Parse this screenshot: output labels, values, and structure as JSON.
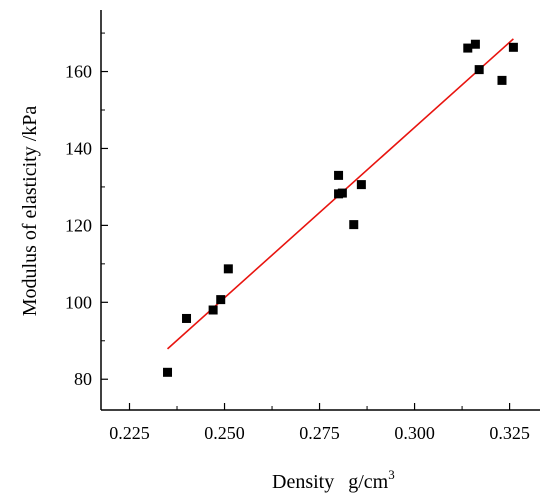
{
  "chart_data": {
    "type": "scatter",
    "title": "",
    "xlabel": "Density",
    "xlabel_unit": "g/cm",
    "xlabel_unit_exponent": "3",
    "ylabel": "Modulus of elasticity /kPa",
    "xlim": [
      0.2175,
      0.333
    ],
    "ylim": [
      72,
      176
    ],
    "x_ticks": [
      0.225,
      0.25,
      0.275,
      0.3,
      0.325
    ],
    "x_tick_labels": [
      "0.225",
      "0.250",
      "0.275",
      "0.300",
      "0.325"
    ],
    "y_ticks": [
      80,
      100,
      120,
      140,
      160
    ],
    "y_tick_labels": [
      "80",
      "100",
      "120",
      "140",
      "160"
    ],
    "grid": false,
    "legend": "none",
    "series": [
      {
        "kind": "points",
        "color": "#000000",
        "marker": "square",
        "points": [
          {
            "x": 0.235,
            "y": 81.8
          },
          {
            "x": 0.24,
            "y": 95.8
          },
          {
            "x": 0.247,
            "y": 98.0
          },
          {
            "x": 0.249,
            "y": 100.7
          },
          {
            "x": 0.251,
            "y": 108.7
          },
          {
            "x": 0.28,
            "y": 133.0
          },
          {
            "x": 0.28,
            "y": 128.2
          },
          {
            "x": 0.281,
            "y": 128.4
          },
          {
            "x": 0.284,
            "y": 120.2
          },
          {
            "x": 0.286,
            "y": 130.6
          },
          {
            "x": 0.314,
            "y": 166.1
          },
          {
            "x": 0.316,
            "y": 167.1
          },
          {
            "x": 0.317,
            "y": 160.5
          },
          {
            "x": 0.323,
            "y": 157.7
          },
          {
            "x": 0.326,
            "y": 166.3
          }
        ]
      },
      {
        "kind": "fit-line",
        "color": "#e8140f",
        "points": [
          {
            "x": 0.235,
            "y": 87.9
          },
          {
            "x": 0.326,
            "y": 168.5
          }
        ]
      }
    ]
  }
}
